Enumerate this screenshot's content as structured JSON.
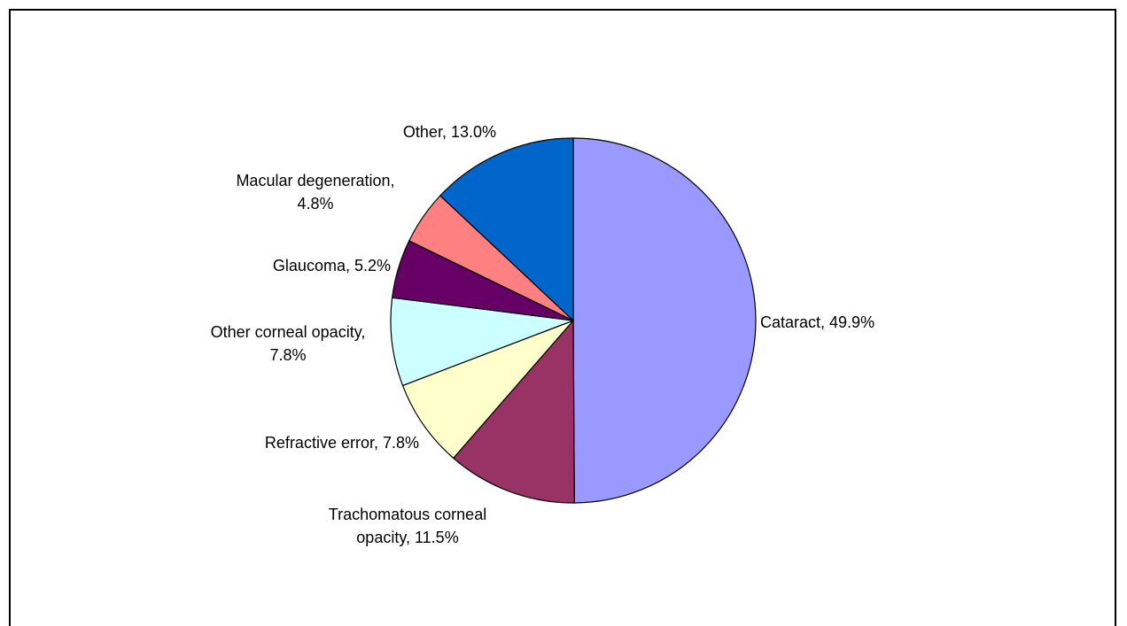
{
  "chart_data": {
    "type": "pie",
    "title": "",
    "start_angle_deg": 0,
    "direction": "clockwise",
    "slices": [
      {
        "label_lines": [
          "Cataract, 49.9%"
        ],
        "value": 49.9,
        "color": "#9999ff"
      },
      {
        "label_lines": [
          "Trachomatous corneal",
          "opacity, 11.5%"
        ],
        "value": 11.5,
        "color": "#993366"
      },
      {
        "label_lines": [
          "Refractive error, 7.8%"
        ],
        "value": 7.8,
        "color": "#ffffcc"
      },
      {
        "label_lines": [
          "Other corneal opacity,",
          "7.8%"
        ],
        "value": 7.8,
        "color": "#ccffff"
      },
      {
        "label_lines": [
          "Glaucoma, 5.2%"
        ],
        "value": 5.2,
        "color": "#660066"
      },
      {
        "label_lines": [
          "Macular degeneration,",
          "4.8%"
        ],
        "value": 4.8,
        "color": "#ff8080"
      },
      {
        "label_lines": [
          "Other, 13.0%"
        ],
        "value": 13.0,
        "color": "#0066cc"
      }
    ]
  }
}
